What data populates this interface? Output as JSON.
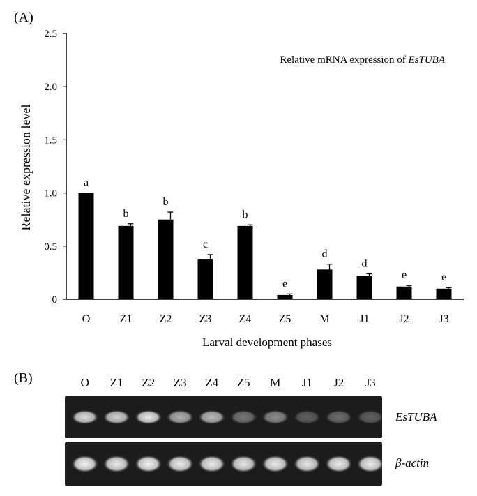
{
  "panel_a": {
    "label": "(A)"
  },
  "panel_b": {
    "label": "(B)"
  },
  "chart_data": {
    "type": "bar",
    "title": "Relative mRNA expression of ",
    "title_gene": "EsTUBA",
    "xlabel": "Larval development phases",
    "ylabel": "Relative expression level",
    "ylim": [
      0,
      2.5
    ],
    "yticks": [
      "0",
      "0.5",
      "1.0",
      "1.5",
      "2.0",
      "2.5"
    ],
    "ytick_values": [
      0,
      0.5,
      1.0,
      1.5,
      2.0,
      2.5
    ],
    "categories": [
      "O",
      "Z1",
      "Z2",
      "Z3",
      "Z4",
      "Z5",
      "M",
      "J1",
      "J2",
      "J3"
    ],
    "values": [
      1.0,
      0.69,
      0.75,
      0.38,
      0.69,
      0.04,
      0.28,
      0.22,
      0.12,
      0.1
    ],
    "errors": [
      0.0,
      0.02,
      0.07,
      0.04,
      0.01,
      0.01,
      0.05,
      0.02,
      0.01,
      0.01
    ],
    "significance_letters": [
      "a",
      "b",
      "b",
      "c",
      "b",
      "e",
      "d",
      "d",
      "e",
      "e"
    ],
    "bar_color": "#000000",
    "grid": false
  },
  "gel": {
    "lanes": [
      "O",
      "Z1",
      "Z2",
      "Z3",
      "Z4",
      "Z5",
      "M",
      "J1",
      "J2",
      "J3"
    ],
    "rows": [
      {
        "name": "EsTUBA",
        "intensities": [
          0.85,
          0.8,
          0.9,
          0.65,
          0.7,
          0.4,
          0.5,
          0.3,
          0.35,
          0.3
        ]
      },
      {
        "name": "β-actin",
        "intensities": [
          0.95,
          0.92,
          0.95,
          0.92,
          0.92,
          0.9,
          0.92,
          0.9,
          0.92,
          0.92
        ]
      }
    ],
    "background": "#1c1c1c"
  }
}
